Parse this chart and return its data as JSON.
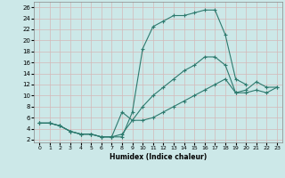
{
  "xlabel": "Humidex (Indice chaleur)",
  "background_color": "#cce8e8",
  "grid_color": "#d4b8b8",
  "line_color": "#2d7a6e",
  "xlim": [
    -0.5,
    23.5
  ],
  "ylim": [
    1.5,
    27.0
  ],
  "xticks": [
    0,
    1,
    2,
    3,
    4,
    5,
    6,
    7,
    8,
    9,
    10,
    11,
    12,
    13,
    14,
    15,
    16,
    17,
    18,
    19,
    20,
    21,
    22,
    23
  ],
  "yticks": [
    2,
    4,
    6,
    8,
    10,
    12,
    14,
    16,
    18,
    20,
    22,
    24,
    26
  ],
  "line1_x": [
    0,
    1,
    2,
    3,
    4,
    5,
    6,
    7,
    8,
    9,
    10,
    11,
    12,
    13,
    14,
    15,
    16,
    17,
    18,
    19,
    20
  ],
  "line1_y": [
    5,
    5,
    4.5,
    3.5,
    3,
    3,
    2.5,
    2.5,
    2.5,
    7,
    18.5,
    22.5,
    23.5,
    24.5,
    24.5,
    25.0,
    25.5,
    25.5,
    21.0,
    13.0,
    12.0
  ],
  "line2_x": [
    0,
    1,
    2,
    3,
    4,
    5,
    6,
    7,
    8,
    9,
    10,
    11,
    12,
    13,
    14,
    15,
    16,
    17,
    18,
    19,
    20,
    21,
    22,
    23
  ],
  "line2_y": [
    5,
    5,
    4.5,
    3.5,
    3,
    3,
    2.5,
    2.5,
    3,
    5.5,
    8.0,
    10.0,
    11.5,
    13.0,
    14.5,
    15.5,
    17.0,
    17.0,
    15.5,
    10.5,
    11.0,
    12.5,
    11.5,
    11.5
  ],
  "line3_x": [
    0,
    1,
    2,
    3,
    4,
    5,
    6,
    7,
    8,
    9,
    10,
    11,
    12,
    13,
    14,
    15,
    16,
    17,
    18,
    19,
    20,
    21,
    22,
    23
  ],
  "line3_y": [
    5,
    5,
    4.5,
    3.5,
    3,
    3,
    2.5,
    2.5,
    7,
    5.5,
    5.5,
    6.0,
    7.0,
    8.0,
    9.0,
    10.0,
    11.0,
    12.0,
    13.0,
    10.5,
    10.5,
    11.0,
    10.5,
    11.5
  ]
}
